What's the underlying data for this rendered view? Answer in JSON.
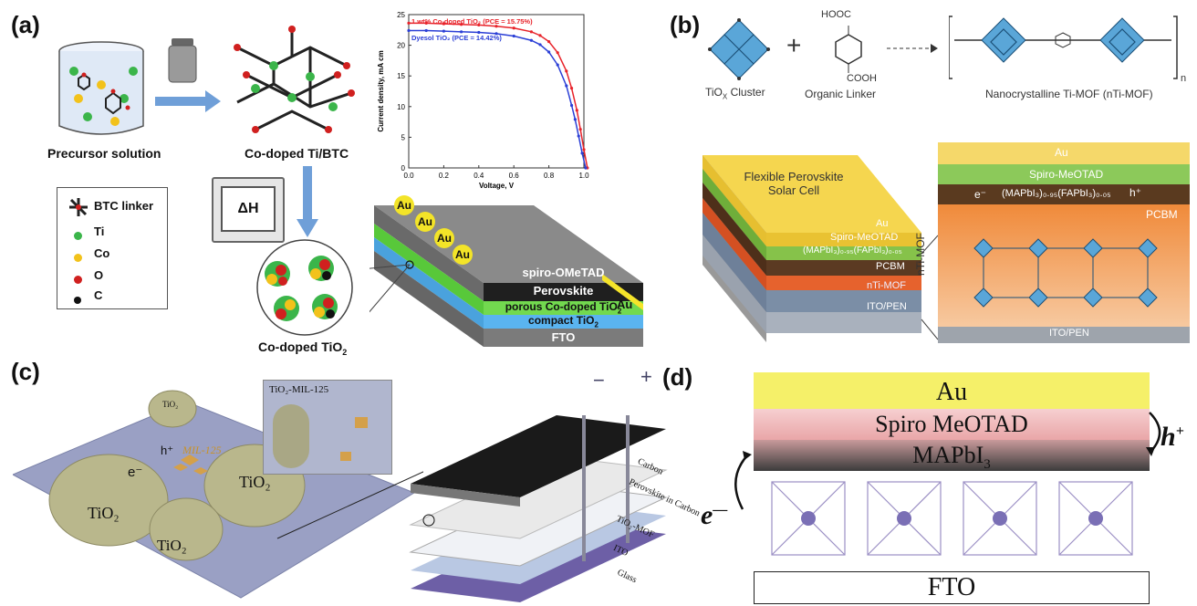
{
  "panels": {
    "a": {
      "label": "(a)",
      "precursor": "Precursor solution",
      "codoped_btc": "Co-doped Ti/BTC",
      "codoped_tio2": "Co-doped TiO",
      "heat": "ΔH",
      "legend": [
        {
          "name": "BTC linker",
          "color": "#222222"
        },
        {
          "name": "Ti",
          "color": "#3bb54a"
        },
        {
          "name": "Co",
          "color": "#f2c21b"
        },
        {
          "name": "O",
          "color": "#d0201f"
        },
        {
          "name": "C",
          "color": "#111111"
        }
      ],
      "device_layers": [
        "spiro-OMeTAD",
        "Perovskite",
        "porous Co-doped TiO",
        "compact TiO",
        "FTO"
      ],
      "au_labels": [
        "Au",
        "Au",
        "Au",
        "Au"
      ],
      "au_side": "Au",
      "chart_data": {
        "type": "line",
        "xlabel": "Voltage, V",
        "ylabel": "Current density, mA cm",
        "xlim": [
          0.0,
          1.0
        ],
        "ylim": [
          0,
          25
        ],
        "x_ticks": [
          "0.0",
          "0.2",
          "0.4",
          "0.6",
          "0.8",
          "1.0"
        ],
        "y_ticks": [
          "0",
          "5",
          "10",
          "15",
          "20",
          "25"
        ],
        "series": [
          {
            "name": "1 wt% Co-doped TiO₂ (PCE = 15.75%)",
            "color": "#e8232a",
            "x": [
              0.0,
              0.1,
              0.2,
              0.3,
              0.4,
              0.5,
              0.6,
              0.7,
              0.75,
              0.8,
              0.85,
              0.9,
              0.93,
              0.96,
              0.98,
              1.0,
              1.02
            ],
            "y": [
              23.6,
              23.6,
              23.5,
              23.4,
              23.3,
              23.1,
              22.8,
              22.2,
              21.6,
              20.6,
              18.8,
              15.8,
              13.0,
              9.4,
              6.3,
              3.0,
              0
            ]
          },
          {
            "name": "Dyesol TiO₂ (PCE = 14.42%)",
            "color": "#2b3fd6",
            "x": [
              0.0,
              0.1,
              0.2,
              0.3,
              0.4,
              0.5,
              0.6,
              0.7,
              0.75,
              0.8,
              0.85,
              0.9,
              0.93,
              0.95,
              0.97,
              0.99,
              1.01
            ],
            "y": [
              22.4,
              22.4,
              22.3,
              22.2,
              22.1,
              21.9,
              21.5,
              20.8,
              20.1,
              18.9,
              16.8,
              13.4,
              10.2,
              7.9,
              5.2,
              2.4,
              0
            ]
          }
        ]
      }
    },
    "b": {
      "label": "(b)",
      "cluster_label": "TiO",
      "cluster_sub": "X",
      "cluster_suffix": " Cluster",
      "linker_label": "Organic Linker",
      "mof_label": "Nanocrystalline Ti-MOF (nTi-MOF)",
      "hooc": "HOOC",
      "cooh": "COOH",
      "n": "n",
      "cell_title": "Flexible Perovskite Solar Cell",
      "stack_layers": [
        "Au",
        "Spiro-MeOTAD",
        "(MAPbI₃)₀.₉₅(FAPbI₃)₀.₀₅",
        "PCBM",
        "nTi-MOF",
        "ITO/PEN"
      ],
      "zoom_layers": [
        "Au",
        "Spiro-MeOTAD",
        "(MAPbI₃)₀.₉₅(FAPbI₃)₀.₀₅",
        "PCBM",
        "ITO/PEN"
      ],
      "side_label": "nTi-MOF",
      "electron": "e⁻",
      "hole": "h⁺"
    },
    "c": {
      "label": "(c)",
      "particles": [
        "TiO₂",
        "TiO₂",
        "TiO₂",
        "TiO₂"
      ],
      "mil": "MIL-125",
      "inset": "TiO₂-MIL-125",
      "electron": "e⁻",
      "hole": "h⁺",
      "layers": [
        "Carbon",
        "Perovskite in Carbon",
        "TiO₂-MOF",
        "ITO",
        "Glass"
      ],
      "minus": "−",
      "plus": "+"
    },
    "d": {
      "label": "(d)",
      "layers": [
        "Au",
        "Spiro MeOTAD",
        "MAPbI",
        "FTO"
      ],
      "mapbi_sub": "3",
      "hole": "h",
      "hole_sup": "+",
      "electron": "e"
    }
  }
}
